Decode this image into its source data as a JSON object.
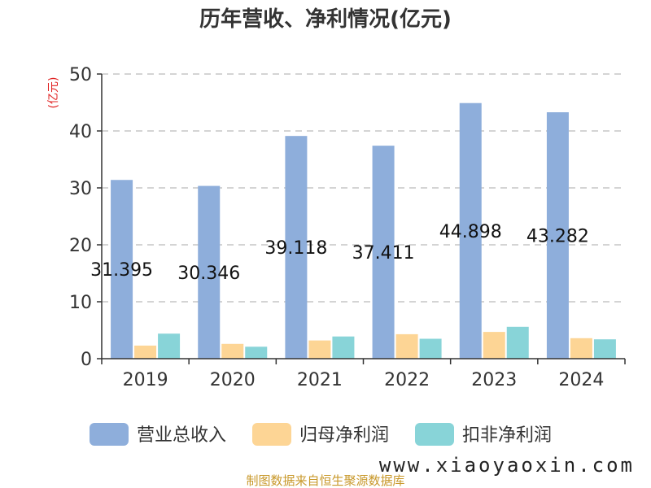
{
  "chart_data": {
    "type": "bar",
    "title": "历年营收、净利情况(亿元)",
    "ylabel": "(亿元)",
    "categories": [
      "2019",
      "2020",
      "2021",
      "2022",
      "2023",
      "2024"
    ],
    "ylim": [
      0,
      50
    ],
    "yticks": [
      0,
      10,
      20,
      30,
      40,
      50
    ],
    "grid": true,
    "legend_position": "bottom",
    "series": [
      {
        "name": "营业总收入",
        "color": "#8eaedb",
        "values": [
          31.395,
          30.346,
          39.118,
          37.411,
          44.898,
          43.282
        ],
        "labels": [
          "31.395",
          "30.346",
          "39.118",
          "37.411",
          "44.898",
          "43.282"
        ]
      },
      {
        "name": "归母净利润",
        "color": "#fdd595",
        "values": [
          2.3,
          2.6,
          3.2,
          4.3,
          4.7,
          3.6
        ]
      },
      {
        "name": "扣非净利润",
        "color": "#88d4d8",
        "values": [
          4.4,
          2.1,
          3.9,
          3.5,
          5.6,
          3.4
        ]
      }
    ]
  },
  "footer": {
    "source": "制图数据来自恒生聚源数据库",
    "watermark": "www.xiaoyaoxin.com"
  }
}
